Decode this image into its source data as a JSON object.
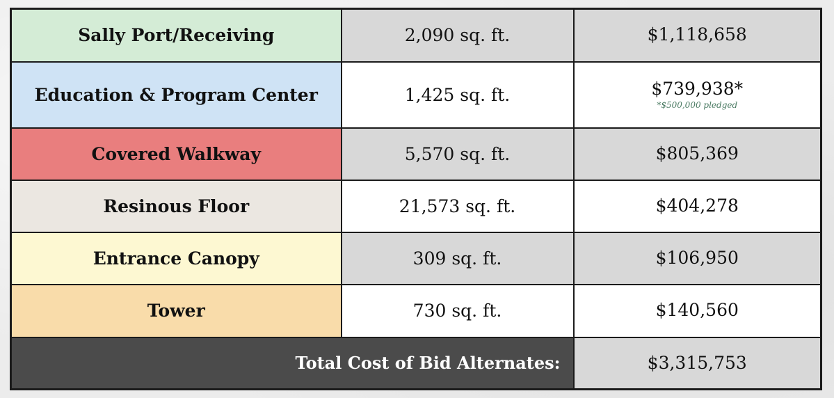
{
  "rows": [
    {
      "name": "Sally Port/Receiving",
      "area": "2,090 sq. ft.",
      "cost": "$1,118,658",
      "cost_note": "",
      "color": "#d4ecd6"
    },
    {
      "name": "Education & Program Center",
      "area": "1,425 sq. ft.",
      "cost": "$739,938*",
      "cost_note": "*$500,000 pledged",
      "color": "#cfe3f5"
    },
    {
      "name": "Covered Walkway",
      "area": "5,570 sq. ft.",
      "cost": "$805,369",
      "cost_note": "",
      "color": "#e97e7e"
    },
    {
      "name": "Resinous Floor",
      "area": "21,573 sq. ft.",
      "cost": "$404,278",
      "cost_note": "",
      "color": "#ebe7e1"
    },
    {
      "name": "Entrance Canopy",
      "area": "309 sq. ft.",
      "cost": "$106,950",
      "cost_note": "",
      "color": "#fdf8d2"
    },
    {
      "name": "Tower",
      "area": "730 sq. ft.",
      "cost": "$140,560",
      "cost_note": "",
      "color": "#f9dcaa"
    }
  ],
  "total": {
    "label": "Total Cost of Bid Alternates:",
    "value": "$3,315,753"
  }
}
